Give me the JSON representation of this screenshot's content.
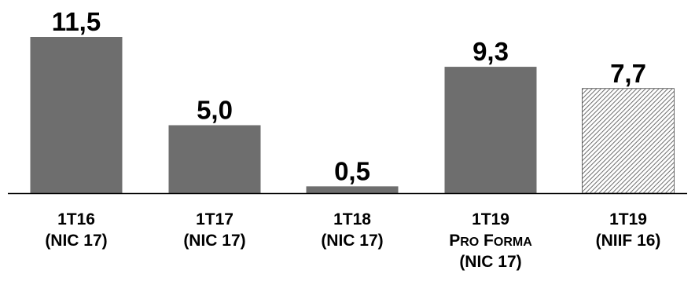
{
  "chart_data": {
    "type": "bar",
    "categories": [
      [
        "1T16",
        "(NIC 17)"
      ],
      [
        "1T17",
        "(NIC 17)"
      ],
      [
        "1T18",
        "(NIC 17)"
      ],
      [
        "1T19",
        "Pro Forma",
        "(NIC 17)"
      ],
      [
        "1T19",
        "(NIIF 16)"
      ]
    ],
    "values": [
      11.5,
      5.0,
      0.5,
      9.3,
      7.7
    ],
    "value_labels": [
      "11,5",
      "5,0",
      "0,5",
      "9,3",
      "7,7"
    ],
    "bar_styles": [
      "solid",
      "solid",
      "solid",
      "solid",
      "hatched"
    ],
    "ylim": [
      0,
      11.5
    ],
    "title": "",
    "xlabel": "",
    "ylabel": "",
    "grid": false,
    "legend": "none",
    "colors": {
      "bar": "#6e6e6e",
      "hatch": "#6e6e6e",
      "hatch_bg": "#ffffff",
      "axis": "#000000",
      "text": "#000000"
    }
  }
}
